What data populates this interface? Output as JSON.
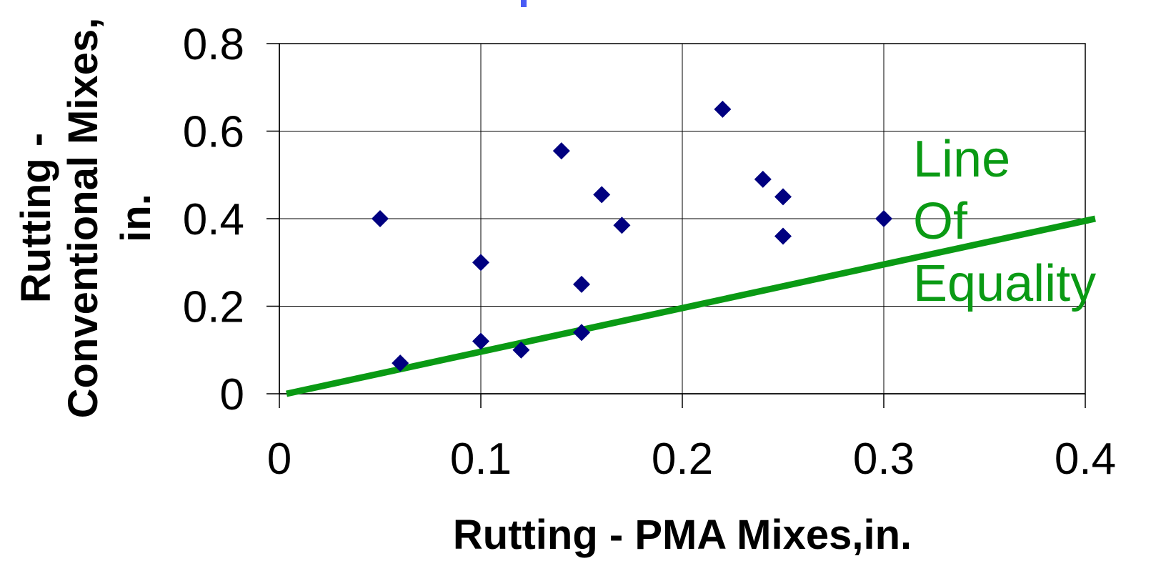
{
  "chart_data": {
    "type": "scatter",
    "xlabel": "Rutting - PMA Mixes,in.",
    "ylabel": "Rutting - Conventional Mixes, in.",
    "ylabel_lines": [
      "Rutting -",
      "Conventional Mixes,",
      "in."
    ],
    "xlim": [
      0,
      0.4
    ],
    "ylim": [
      0,
      0.8
    ],
    "x_ticks": [
      0,
      0.1,
      0.2,
      0.3,
      0.4
    ],
    "x_tick_labels": [
      "0",
      "0.1",
      "0.2",
      "0.3",
      "0.4"
    ],
    "y_ticks": [
      0,
      0.2,
      0.4,
      0.6,
      0.8
    ],
    "y_tick_labels": [
      "0",
      "0.2",
      "0.4",
      "0.6",
      "0.8"
    ],
    "grid": true,
    "series": [
      {
        "marker": "diamond",
        "color": "#000080",
        "points": [
          {
            "x": 0.05,
            "y": 0.4
          },
          {
            "x": 0.06,
            "y": 0.07
          },
          {
            "x": 0.1,
            "y": 0.3
          },
          {
            "x": 0.1,
            "y": 0.12
          },
          {
            "x": 0.12,
            "y": 0.1
          },
          {
            "x": 0.14,
            "y": 0.555
          },
          {
            "x": 0.15,
            "y": 0.25
          },
          {
            "x": 0.15,
            "y": 0.14
          },
          {
            "x": 0.16,
            "y": 0.455
          },
          {
            "x": 0.17,
            "y": 0.385
          },
          {
            "x": 0.22,
            "y": 0.65
          },
          {
            "x": 0.24,
            "y": 0.49
          },
          {
            "x": 0.25,
            "y": 0.45
          },
          {
            "x": 0.25,
            "y": 0.36
          },
          {
            "x": 0.3,
            "y": 0.4
          }
        ]
      }
    ],
    "reference_line": {
      "x": [
        0,
        0.4
      ],
      "y": [
        0,
        0.4
      ],
      "color": "#0a9a14"
    },
    "annotation": {
      "lines": [
        "Line",
        "Of",
        "Equality"
      ],
      "color": "#0a9a14"
    },
    "top_mark_color": "#4a5cf5"
  }
}
